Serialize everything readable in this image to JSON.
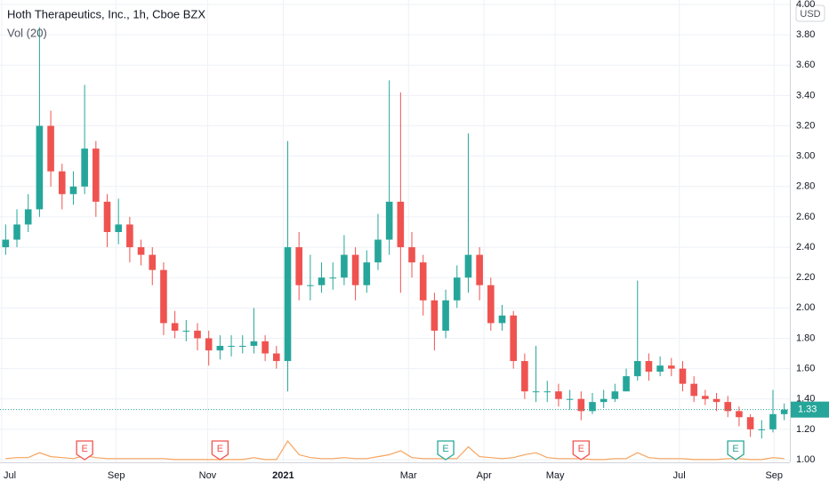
{
  "chart_data": {
    "type": "candlestick",
    "title": "Hoth Therapeutics, Inc., 1h, Cboe BZX",
    "indicator": "Vol (20)",
    "currency": "USD",
    "up_color": "#26a69a",
    "down_color": "#ef5350",
    "volume_color": "#f7a35c",
    "open": [
      2.4,
      2.45,
      2.55,
      2.65,
      3.2,
      2.9,
      2.75,
      2.8,
      3.05,
      2.7,
      2.5,
      2.55,
      2.4,
      2.35,
      2.25,
      1.9,
      1.85,
      1.85,
      1.8,
      1.72,
      1.75,
      1.75,
      1.75,
      1.78,
      1.7,
      1.65,
      2.4,
      2.15,
      2.15,
      2.2,
      2.2,
      2.35,
      2.15,
      2.3,
      2.45,
      2.7,
      2.4,
      2.3,
      2.05,
      1.85,
      2.05,
      2.2,
      2.35,
      2.15,
      1.9,
      1.95,
      1.65,
      1.45,
      1.45,
      1.45,
      1.4,
      1.4,
      1.32,
      1.38,
      1.4,
      1.45,
      1.55,
      1.65,
      1.58,
      1.62,
      1.6,
      1.5,
      1.42,
      1.4,
      1.38,
      1.32,
      1.28,
      1.2,
      1.2,
      1.3
    ],
    "high": [
      2.55,
      2.65,
      2.75,
      3.85,
      3.3,
      2.95,
      2.9,
      3.47,
      3.1,
      2.75,
      2.72,
      2.6,
      2.45,
      2.4,
      2.3,
      1.98,
      1.92,
      1.9,
      1.85,
      1.82,
      1.82,
      1.82,
      2.0,
      1.82,
      1.75,
      3.1,
      2.5,
      2.35,
      2.3,
      2.3,
      2.48,
      2.4,
      2.38,
      2.62,
      3.5,
      3.42,
      2.5,
      2.35,
      2.1,
      2.12,
      2.28,
      3.15,
      2.4,
      2.2,
      2.02,
      1.98,
      1.7,
      1.75,
      1.52,
      1.5,
      1.46,
      1.45,
      1.44,
      1.46,
      1.5,
      1.6,
      2.18,
      1.7,
      1.68,
      1.67,
      1.65,
      1.55,
      1.46,
      1.44,
      1.42,
      1.35,
      1.3,
      1.26,
      1.46,
      1.37
    ],
    "low": [
      2.35,
      2.4,
      2.5,
      2.6,
      2.8,
      2.65,
      2.68,
      2.75,
      2.6,
      2.4,
      2.42,
      2.3,
      2.28,
      2.15,
      1.82,
      1.8,
      1.78,
      1.72,
      1.62,
      1.66,
      1.68,
      1.7,
      1.7,
      1.65,
      1.6,
      1.45,
      2.05,
      2.05,
      2.1,
      2.12,
      2.15,
      2.05,
      2.1,
      2.25,
      2.35,
      2.1,
      2.2,
      1.95,
      1.72,
      1.8,
      2.0,
      2.1,
      2.05,
      1.85,
      1.85,
      1.6,
      1.4,
      1.38,
      1.38,
      1.35,
      1.33,
      1.26,
      1.3,
      1.34,
      1.38,
      1.45,
      1.52,
      1.52,
      1.55,
      1.55,
      1.45,
      1.38,
      1.36,
      1.32,
      1.28,
      1.22,
      1.15,
      1.14,
      1.18,
      1.26
    ],
    "close": [
      2.45,
      2.55,
      2.65,
      3.2,
      2.9,
      2.75,
      2.8,
      3.05,
      2.7,
      2.5,
      2.55,
      2.4,
      2.35,
      2.25,
      1.9,
      1.85,
      1.85,
      1.8,
      1.72,
      1.75,
      1.75,
      1.75,
      1.78,
      1.7,
      1.65,
      2.4,
      2.15,
      2.15,
      2.2,
      2.2,
      2.35,
      2.15,
      2.3,
      2.45,
      2.7,
      2.4,
      2.3,
      2.05,
      1.85,
      2.05,
      2.2,
      2.35,
      2.15,
      1.9,
      1.95,
      1.65,
      1.45,
      1.45,
      1.45,
      1.4,
      1.4,
      1.32,
      1.38,
      1.4,
      1.45,
      1.55,
      1.65,
      1.58,
      1.62,
      1.6,
      1.5,
      1.42,
      1.4,
      1.38,
      1.32,
      1.28,
      1.2,
      1.2,
      1.3,
      1.33
    ],
    "volume": [
      2,
      3,
      3,
      8,
      4,
      3,
      2,
      5,
      3,
      2,
      2,
      2,
      2,
      2,
      2,
      1,
      1,
      1,
      1,
      1,
      1,
      1,
      3,
      1,
      1,
      20,
      6,
      3,
      2,
      2,
      3,
      2,
      2,
      4,
      6,
      10,
      3,
      2,
      2,
      2,
      2,
      14,
      4,
      3,
      2,
      3,
      6,
      8,
      3,
      2,
      2,
      2,
      1,
      1,
      2,
      2,
      8,
      3,
      2,
      2,
      2,
      1,
      1,
      1,
      2,
      2,
      1,
      1,
      3,
      2
    ],
    "xlim": [
      0,
      70
    ],
    "xticks": [
      {
        "value": 0.15,
        "label": "Jul"
      },
      {
        "value": 10.3,
        "label": "Sep"
      },
      {
        "value": 18.4,
        "label": "Nov"
      },
      {
        "value": 25.1,
        "label": "2021"
      },
      {
        "value": 36.2,
        "label": "Mar"
      },
      {
        "value": 42.9,
        "label": "Apr"
      },
      {
        "value": 49.2,
        "label": "May"
      },
      {
        "value": 60.2,
        "label": "Jul"
      },
      {
        "value": 68.6,
        "label": "Sep"
      }
    ],
    "ylim": [
      1.0,
      4.0
    ],
    "yticks": [
      {
        "value": 1.0,
        "label": "1.00"
      },
      {
        "value": 1.2,
        "label": "1.20"
      },
      {
        "value": 1.4,
        "label": "1.40"
      },
      {
        "value": 1.6,
        "label": "1.60"
      },
      {
        "value": 1.8,
        "label": "1.80"
      },
      {
        "value": 2.0,
        "label": "2.00"
      },
      {
        "value": 2.2,
        "label": "2.20"
      },
      {
        "value": 2.4,
        "label": "2.40"
      },
      {
        "value": 2.6,
        "label": "2.60"
      },
      {
        "value": 2.8,
        "label": "2.80"
      },
      {
        "value": 3.0,
        "label": "3.00"
      },
      {
        "value": 3.2,
        "label": "3.20"
      },
      {
        "value": 3.4,
        "label": "3.40"
      },
      {
        "value": 3.6,
        "label": "3.60"
      },
      {
        "value": 3.8,
        "label": "3.80"
      },
      {
        "value": 4.0,
        "label": "4.00"
      }
    ],
    "grid": true,
    "last_price": 1.33,
    "earnings": [
      {
        "x": 7.5,
        "label": "E",
        "color": "#ef5350"
      },
      {
        "x": 19.5,
        "label": "E",
        "color": "#ef5350"
      },
      {
        "x": 39.5,
        "label": "E",
        "color": "#26a69a"
      },
      {
        "x": 51.5,
        "label": "E",
        "color": "#ef5350"
      },
      {
        "x": 65.2,
        "label": "E",
        "color": "#26a69a"
      }
    ]
  }
}
